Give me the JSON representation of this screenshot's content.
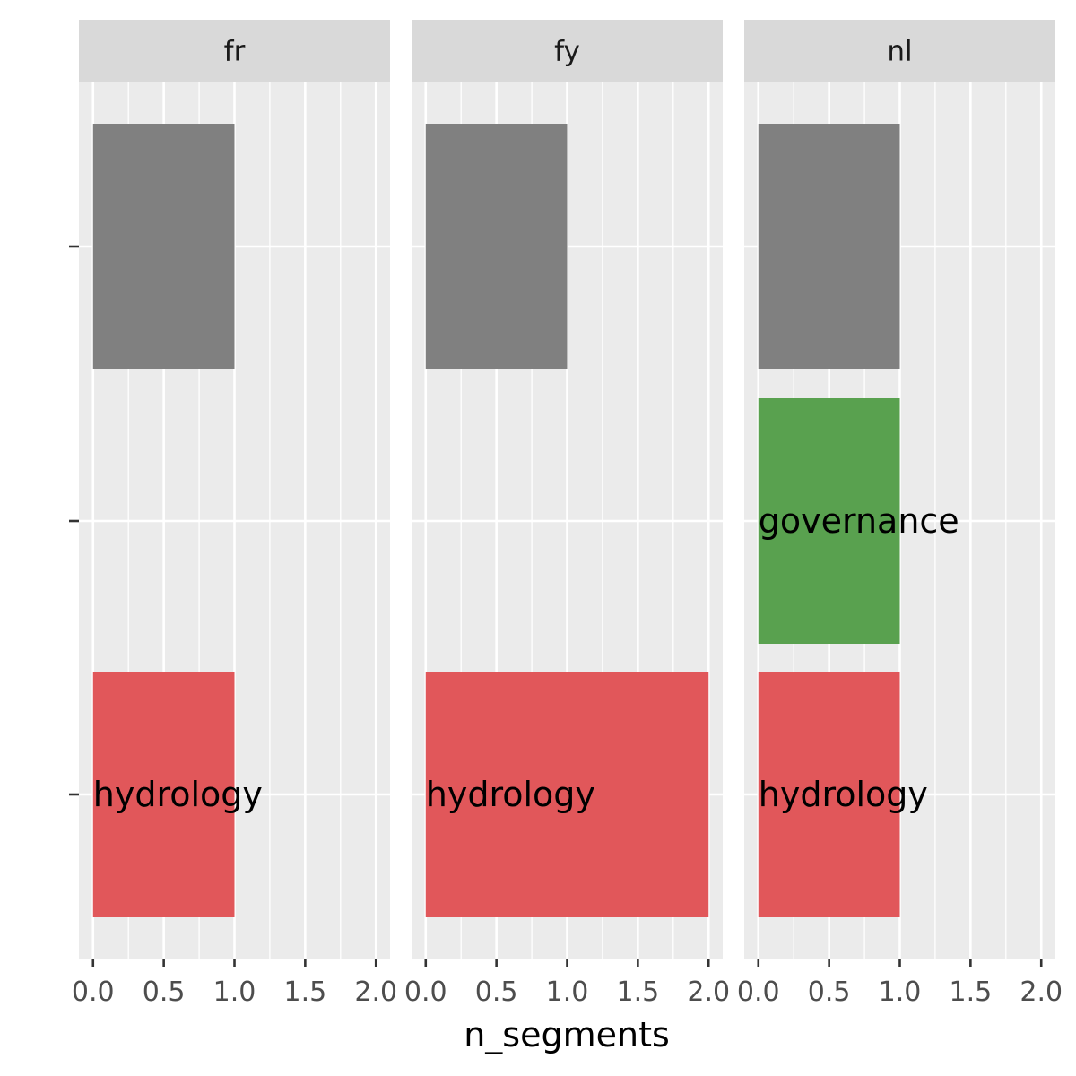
{
  "chart_data": {
    "type": "bar",
    "orientation": "horizontal",
    "facet_by": "language",
    "xlabel": "n_segments",
    "ylabel": "",
    "xlim": [
      -0.1,
      2.1
    ],
    "x_ticks": [
      0,
      0.5,
      1,
      1.5,
      2
    ],
    "x_tick_labels": [
      "0.0",
      "0.5",
      "1.0",
      "1.5",
      "2.0"
    ],
    "y_levels": 3,
    "grid": true,
    "legend": "none",
    "colors": {
      "panel_bg": "#ebebeb",
      "strip_bg": "#d9d9d9",
      "grid": "#ffffff",
      "hydrology": "#e1575a",
      "governance": "#59a14f",
      "unlabeled": "#808080"
    },
    "facets": [
      {
        "name": "fr",
        "bars": [
          {
            "slot": 0,
            "value": 1,
            "label": "",
            "color_key": "unlabeled"
          },
          {
            "slot": 2,
            "value": 1,
            "label": "hydrology",
            "color_key": "hydrology"
          }
        ]
      },
      {
        "name": "fy",
        "bars": [
          {
            "slot": 0,
            "value": 1,
            "label": "",
            "color_key": "unlabeled"
          },
          {
            "slot": 2,
            "value": 2,
            "label": "hydrology",
            "color_key": "hydrology"
          }
        ]
      },
      {
        "name": "nl",
        "bars": [
          {
            "slot": 0,
            "value": 1,
            "label": "",
            "color_key": "unlabeled"
          },
          {
            "slot": 1,
            "value": 1,
            "label": "governance",
            "color_key": "governance"
          },
          {
            "slot": 2,
            "value": 1,
            "label": "hydrology",
            "color_key": "hydrology"
          }
        ]
      }
    ]
  }
}
